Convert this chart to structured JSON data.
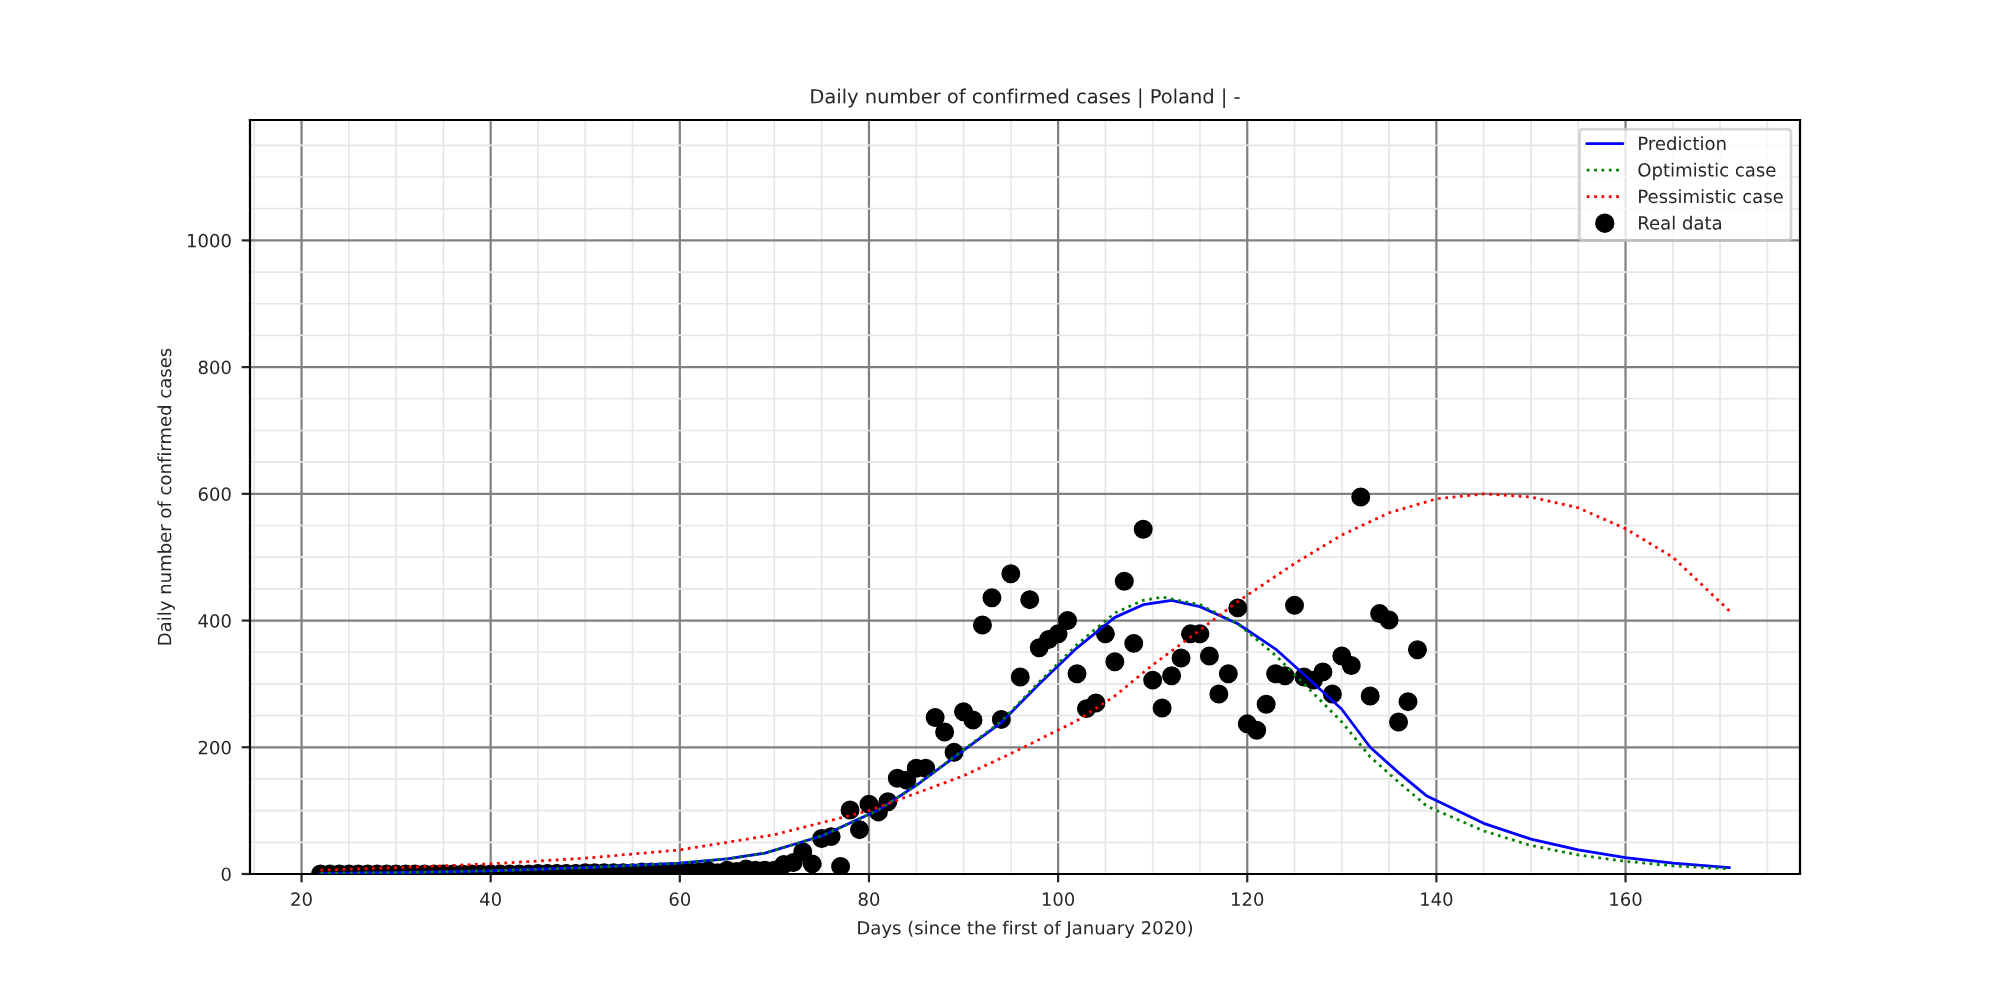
{
  "chart_data": {
    "type": "line",
    "title": "Daily number of confirmed cases | Poland | -",
    "xlabel": "Days (since the first of January 2020)",
    "ylabel": "Daily number of confirmed cases",
    "xlim": [
      14.55,
      178.45
    ],
    "ylim": [
      0,
      1190
    ],
    "xticks": [
      20,
      40,
      60,
      80,
      100,
      120,
      140,
      160
    ],
    "yticks": [
      0,
      200,
      400,
      600,
      800,
      1000
    ],
    "grid": true,
    "legend": "top right",
    "series": [
      {
        "name": "Prediction",
        "line_style": "solid",
        "color": "#0000ff",
        "x": [
          22,
          30,
          40,
          50,
          60,
          65,
          69,
          75,
          81,
          85,
          90,
          94,
          98,
          102,
          106,
          109,
          112,
          115,
          119,
          123,
          126,
          130,
          133,
          136,
          139,
          145,
          150,
          155,
          160,
          165,
          171
        ],
        "values": [
          1,
          2,
          5,
          10,
          17,
          24,
          33,
          60,
          101,
          140,
          195,
          239,
          300,
          357,
          405,
          425,
          432,
          422,
          395,
          355,
          315,
          260,
          200,
          160,
          123,
          80,
          55,
          38,
          26,
          17,
          10
        ]
      },
      {
        "name": "Optimistic case",
        "line_style": "dotted",
        "color": "#008000",
        "x": [
          22,
          30,
          40,
          50,
          60,
          65,
          69,
          75,
          81,
          85,
          90,
          94,
          98,
          102,
          106,
          109,
          111,
          115,
          119,
          123,
          126,
          130,
          133,
          136,
          139,
          145,
          150,
          155,
          160,
          165,
          171
        ],
        "values": [
          1,
          2,
          5,
          10,
          17,
          24,
          33,
          60,
          101,
          140,
          196,
          241,
          303,
          362,
          412,
          432,
          437,
          425,
          395,
          345,
          300,
          240,
          185,
          145,
          107,
          68,
          45,
          30,
          20,
          13,
          8
        ]
      },
      {
        "name": "Pessimistic case",
        "line_style": "dotted",
        "color": "#ff0000",
        "x": [
          22,
          30,
          40,
          50,
          60,
          70,
          80,
          90,
          95,
          102,
          106,
          110,
          115,
          119,
          125,
          130,
          135,
          140,
          145,
          150,
          155,
          160,
          165,
          171
        ],
        "values": [
          6,
          10,
          16,
          25,
          38,
          62,
          100,
          155,
          190,
          242,
          281,
          330,
          385,
          430,
          490,
          535,
          570,
          592,
          600,
          595,
          578,
          545,
          500,
          415
        ]
      },
      {
        "name": "Real data",
        "type": "scatter",
        "marker": "circle",
        "color": "#000000",
        "x": [
          22,
          23,
          24,
          25,
          26,
          27,
          28,
          29,
          30,
          31,
          32,
          33,
          34,
          35,
          36,
          37,
          38,
          39,
          40,
          41,
          42,
          43,
          44,
          45,
          46,
          47,
          48,
          49,
          50,
          51,
          52,
          53,
          54,
          55,
          56,
          57,
          58,
          59,
          60,
          61,
          62,
          63,
          64,
          65,
          66,
          67,
          68,
          69,
          70,
          71,
          72,
          73,
          74,
          75,
          76,
          77,
          78,
          79,
          80,
          81,
          82,
          83,
          84,
          85,
          86,
          87,
          88,
          89,
          90,
          91,
          92,
          93,
          94,
          95,
          96,
          97,
          98,
          99,
          100,
          101,
          102,
          103,
          104,
          105,
          106,
          107,
          108,
          109,
          110,
          111,
          112,
          113,
          114,
          115,
          116,
          117,
          118,
          119,
          120,
          121,
          122,
          123,
          124,
          125,
          126,
          127,
          128,
          129,
          130,
          131,
          132,
          133,
          134,
          135,
          136,
          137,
          138
        ],
        "values": [
          0,
          0,
          0,
          0,
          0,
          0,
          0,
          0,
          0,
          0,
          0,
          0,
          0,
          0,
          0,
          0,
          0,
          0,
          0,
          0,
          0,
          0,
          0,
          1,
          1,
          1,
          1,
          1,
          2,
          2,
          2,
          2,
          2,
          2,
          3,
          3,
          3,
          3,
          3,
          4,
          3,
          5,
          2,
          6,
          4,
          8,
          6,
          6,
          6,
          15,
          18,
          35,
          16,
          56,
          59,
          12,
          101,
          70,
          110,
          98,
          114,
          151,
          148,
          167,
          167,
          247,
          224,
          192,
          256,
          243,
          393,
          436,
          244,
          474,
          311,
          433,
          357,
          370,
          379,
          400,
          316,
          261,
          270,
          379,
          335,
          462,
          364,
          544,
          306,
          262,
          313,
          341,
          379,
          379,
          344,
          284,
          316,
          420,
          237,
          227,
          268,
          316,
          313,
          424,
          311,
          306,
          319,
          284,
          344,
          329,
          595,
          281,
          411,
          401,
          240,
          272,
          354
        ]
      }
    ]
  }
}
